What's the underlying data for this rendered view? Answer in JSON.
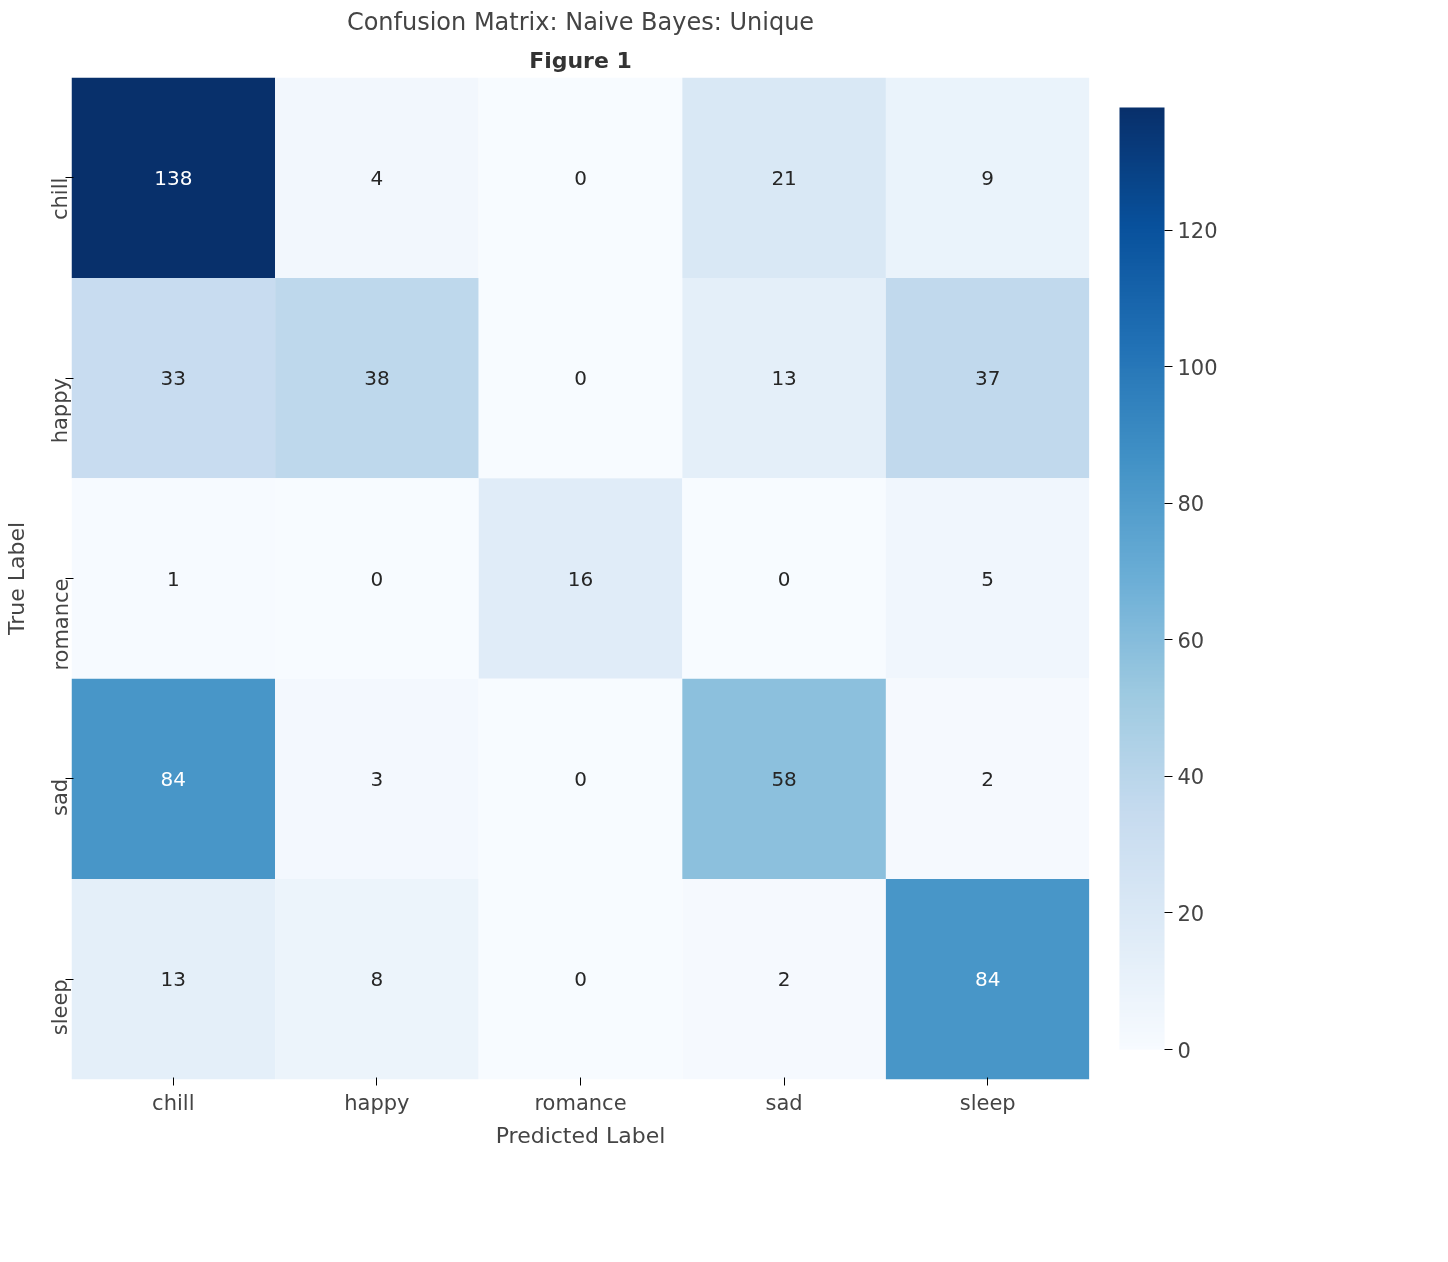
{
  "chart_data": {
    "type": "heatmap",
    "title": "Confusion Matrix: Naive Bayes: Unique",
    "xlabel": "Predicted Label",
    "ylabel": "True Label",
    "annotations": [
      "Figure 1"
    ],
    "categories": [
      "chill",
      "happy",
      "romance",
      "sad",
      "sleep"
    ],
    "y_categories": [
      "chill",
      "happy",
      "romance",
      "sad",
      "sleep"
    ],
    "cells": [
      [
        138,
        4,
        0,
        21,
        9
      ],
      [
        33,
        38,
        0,
        13,
        37
      ],
      [
        1,
        0,
        16,
        0,
        5
      ],
      [
        84,
        3,
        0,
        58,
        2
      ],
      [
        13,
        8,
        0,
        2,
        84
      ]
    ],
    "data_labels": true,
    "clim": [
      0,
      138
    ],
    "cticks": [
      0,
      20,
      40,
      60,
      80,
      100,
      120
    ]
  }
}
